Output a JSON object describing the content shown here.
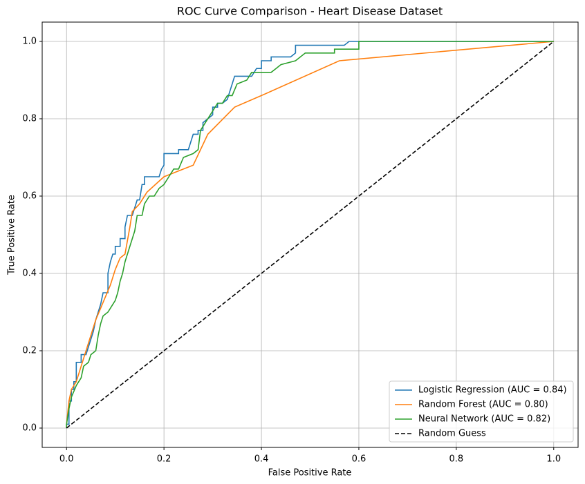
{
  "chart_data": {
    "type": "line",
    "title": "ROC Curve Comparison - Heart Disease Dataset",
    "xlabel": "False Positive Rate",
    "ylabel": "True Positive Rate",
    "xlim": [
      -0.05,
      1.05
    ],
    "ylim": [
      -0.05,
      1.05
    ],
    "xticks": [
      {
        "value": 0,
        "label": "0.0"
      },
      0.2,
      0.4,
      0.6,
      0.8,
      {
        "value": 1,
        "label": "1.0"
      }
    ],
    "yticks": [
      {
        "value": 0,
        "label": "0.0"
      },
      0.2,
      0.4,
      0.6,
      0.8,
      {
        "value": 1,
        "label": "1.0"
      }
    ],
    "grid": true,
    "legend": "lower right",
    "series": [
      {
        "name": "Logistic Regression (AUC = 0.84)",
        "color": "#1f77b4",
        "style": "solid",
        "x": [
          0,
          0,
          0.005,
          0.005,
          0.01,
          0.01,
          0.015,
          0.015,
          0.02,
          0.02,
          0.03,
          0.03,
          0.04,
          0.045,
          0.05,
          0.055,
          0.06,
          0.065,
          0.07,
          0.075,
          0.085,
          0.085,
          0.09,
          0.095,
          0.1,
          0.1,
          0.11,
          0.11,
          0.12,
          0.12,
          0.125,
          0.135,
          0.14,
          0.145,
          0.15,
          0.155,
          0.16,
          0.16,
          0.19,
          0.195,
          0.2,
          0.2,
          0.23,
          0.23,
          0.25,
          0.26,
          0.27,
          0.27,
          0.28,
          0.28,
          0.29,
          0.3,
          0.3,
          0.31,
          0.31,
          0.32,
          0.33,
          0.335,
          0.34,
          0.345,
          0.38,
          0.39,
          0.4,
          0.4,
          0.42,
          0.42,
          0.46,
          0.47,
          0.47,
          0.57,
          0.58,
          1
        ],
        "values": [
          0,
          0.01,
          0.01,
          0.07,
          0.07,
          0.1,
          0.1,
          0.12,
          0.12,
          0.17,
          0.17,
          0.19,
          0.19,
          0.21,
          0.23,
          0.25,
          0.28,
          0.3,
          0.32,
          0.35,
          0.35,
          0.4,
          0.43,
          0.45,
          0.45,
          0.47,
          0.47,
          0.49,
          0.49,
          0.52,
          0.55,
          0.55,
          0.57,
          0.59,
          0.59,
          0.63,
          0.63,
          0.65,
          0.65,
          0.67,
          0.68,
          0.71,
          0.71,
          0.72,
          0.72,
          0.76,
          0.76,
          0.77,
          0.77,
          0.79,
          0.8,
          0.81,
          0.83,
          0.83,
          0.84,
          0.84,
          0.85,
          0.87,
          0.89,
          0.91,
          0.91,
          0.93,
          0.93,
          0.95,
          0.95,
          0.96,
          0.96,
          0.97,
          0.99,
          0.99,
          1,
          1
        ]
      },
      {
        "name": "Random Forest (AUC = 0.80)",
        "color": "#ff7f0e",
        "style": "solid",
        "x": [
          0,
          0,
          0.005,
          0.01,
          0.02,
          0.03,
          0.04,
          0.05,
          0.06,
          0.07,
          0.08,
          0.09,
          0.1,
          0.11,
          0.12,
          0.13,
          0.135,
          0.15,
          0.165,
          0.2,
          0.26,
          0.29,
          0.345,
          0.4,
          0.56,
          1
        ],
        "values": [
          0,
          0.01,
          0.07,
          0.1,
          0.12,
          0.16,
          0.2,
          0.24,
          0.28,
          0.31,
          0.34,
          0.37,
          0.41,
          0.44,
          0.45,
          0.52,
          0.56,
          0.58,
          0.61,
          0.65,
          0.68,
          0.76,
          0.83,
          0.86,
          0.95,
          1
        ]
      },
      {
        "name": "Neural Network (AUC = 0.82)",
        "color": "#2ca02c",
        "style": "solid",
        "x": [
          0,
          0,
          0.005,
          0.01,
          0.02,
          0.03,
          0.035,
          0.045,
          0.05,
          0.06,
          0.065,
          0.07,
          0.075,
          0.085,
          0.09,
          0.1,
          0.105,
          0.11,
          0.115,
          0.12,
          0.125,
          0.13,
          0.14,
          0.145,
          0.155,
          0.16,
          0.17,
          0.18,
          0.19,
          0.2,
          0.21,
          0.22,
          0.23,
          0.24,
          0.26,
          0.27,
          0.275,
          0.3,
          0.31,
          0.32,
          0.33,
          0.34,
          0.35,
          0.37,
          0.38,
          0.42,
          0.43,
          0.44,
          0.47,
          0.49,
          0.55,
          0.55,
          0.6,
          0.6,
          1
        ],
        "values": [
          0,
          0.01,
          0.05,
          0.08,
          0.11,
          0.13,
          0.16,
          0.17,
          0.19,
          0.2,
          0.24,
          0.27,
          0.29,
          0.3,
          0.31,
          0.33,
          0.35,
          0.38,
          0.4,
          0.43,
          0.45,
          0.47,
          0.51,
          0.55,
          0.55,
          0.58,
          0.6,
          0.6,
          0.62,
          0.63,
          0.65,
          0.67,
          0.67,
          0.7,
          0.71,
          0.72,
          0.77,
          0.82,
          0.84,
          0.84,
          0.86,
          0.86,
          0.89,
          0.9,
          0.92,
          0.92,
          0.93,
          0.94,
          0.95,
          0.97,
          0.97,
          0.98,
          0.98,
          1,
          1
        ]
      },
      {
        "name": "Random Guess",
        "color": "#000000",
        "style": "dashed",
        "x": [
          0,
          1
        ],
        "values": [
          0,
          1
        ]
      }
    ]
  }
}
